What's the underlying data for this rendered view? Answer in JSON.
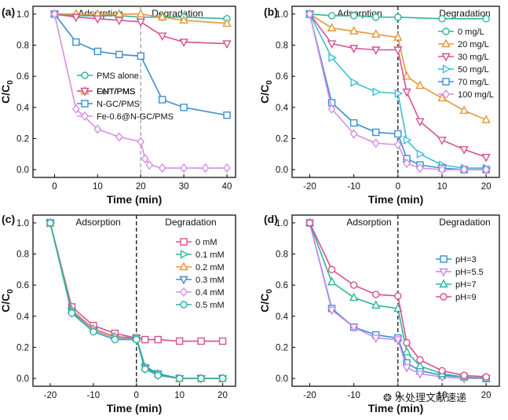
{
  "chart_data": [
    {
      "id": "a",
      "type": "line",
      "panel_label": "(a)",
      "xlabel": "Time (min)",
      "ylabel_main": "C/C",
      "ylabel_sub": "0",
      "xlim": [
        -5,
        42
      ],
      "ylim": [
        -0.05,
        1.05
      ],
      "xticks": [
        0,
        10,
        20,
        30,
        40
      ],
      "yticks": [
        0.0,
        0.2,
        0.4,
        0.6,
        0.8,
        1.0
      ],
      "divider_x": 20,
      "divider_style": "gray-dashed",
      "region_labels": [
        "Adsorption",
        "Degradation"
      ],
      "legend_groups": [
        {
          "position": "mid-left",
          "series_index": [
            0,
            1
          ]
        },
        {
          "position": "bottom-left",
          "series_index": [
            2,
            3,
            4
          ]
        }
      ],
      "series": [
        {
          "name": "PMS alone",
          "color": "#2db59b",
          "marker": "circle",
          "x": [
            0,
            5,
            10,
            15,
            20,
            25,
            30,
            40
          ],
          "y": [
            1.0,
            0.99,
            0.99,
            0.99,
            0.98,
            0.98,
            0.98,
            0.97
          ]
        },
        {
          "name": "Fe²⁺/PMS",
          "color": "#e8953a",
          "marker": "triangle-up",
          "x": [
            0,
            5,
            10,
            15,
            20,
            25,
            30,
            40
          ],
          "y": [
            1.0,
            1.0,
            1.0,
            1.0,
            1.0,
            0.98,
            0.96,
            0.94
          ]
        },
        {
          "name": "CNT/PMS",
          "color": "#d8508f",
          "marker": "triangle-down",
          "x": [
            0,
            5,
            10,
            15,
            20,
            25,
            30,
            40
          ],
          "y": [
            1.0,
            0.98,
            0.97,
            0.96,
            0.95,
            0.86,
            0.82,
            0.81
          ]
        },
        {
          "name": "N-GC/PMS",
          "color": "#3a8fd0",
          "marker": "square",
          "x": [
            0,
            5,
            10,
            15,
            20,
            25,
            30,
            40
          ],
          "y": [
            1.0,
            0.82,
            0.76,
            0.74,
            0.73,
            0.45,
            0.4,
            0.35
          ]
        },
        {
          "name": "Fe-0.6@N-GC/PMS",
          "color": "#d68fe8",
          "marker": "diamond",
          "x": [
            0,
            5,
            10,
            15,
            20,
            21,
            22,
            25,
            30,
            35,
            40
          ],
          "y": [
            1.0,
            0.39,
            0.26,
            0.21,
            0.18,
            0.07,
            0.03,
            0.01,
            0.01,
            0.01,
            0.01
          ]
        }
      ]
    },
    {
      "id": "b",
      "type": "line",
      "panel_label": "(b)",
      "xlabel": "Time (min)",
      "ylabel_main": "C/C",
      "ylabel_sub": "0",
      "xlim": [
        -24,
        23
      ],
      "ylim": [
        -0.05,
        1.05
      ],
      "xticks": [
        -20,
        -10,
        0,
        10,
        20
      ],
      "yticks": [
        0.0,
        0.2,
        0.4,
        0.6,
        0.8,
        1.0
      ],
      "divider_x": 0,
      "divider_style": "black-dashed",
      "region_labels": [
        "Adsorption",
        "Degradation"
      ],
      "legend_groups": [
        {
          "position": "right",
          "series_index": [
            0,
            1,
            2,
            3,
            4,
            5
          ]
        }
      ],
      "series": [
        {
          "name": "0 mg/L",
          "color": "#2db59b",
          "marker": "circle",
          "x": [
            -20,
            -15,
            -10,
            -5,
            0,
            10,
            20
          ],
          "y": [
            1.0,
            0.99,
            0.99,
            0.98,
            0.98,
            0.97,
            0.97
          ]
        },
        {
          "name": "20 mg/L",
          "color": "#e8953a",
          "marker": "triangle-up",
          "x": [
            -20,
            -15,
            -10,
            -5,
            0,
            2,
            5,
            10,
            15,
            20
          ],
          "y": [
            1.0,
            0.91,
            0.89,
            0.87,
            0.85,
            0.6,
            0.54,
            0.46,
            0.38,
            0.32
          ]
        },
        {
          "name": "30 mg/L",
          "color": "#d8508f",
          "marker": "triangle-down",
          "x": [
            -20,
            -15,
            -10,
            -5,
            0,
            2,
            5,
            10,
            15,
            20
          ],
          "y": [
            1.0,
            0.81,
            0.78,
            0.77,
            0.77,
            0.5,
            0.31,
            0.19,
            0.13,
            0.08
          ]
        },
        {
          "name": "50 mg/L",
          "color": "#3ac0d5",
          "marker": "triangle-right",
          "x": [
            -20,
            -15,
            -10,
            -5,
            0,
            2,
            5,
            10,
            15,
            20
          ],
          "y": [
            1.0,
            0.72,
            0.56,
            0.5,
            0.49,
            0.19,
            0.1,
            0.03,
            0.01,
            0.01
          ]
        },
        {
          "name": "70 mg/L",
          "color": "#3a8fd0",
          "marker": "square",
          "x": [
            -20,
            -15,
            -10,
            -5,
            0,
            2,
            5,
            10,
            15,
            20
          ],
          "y": [
            1.0,
            0.43,
            0.3,
            0.24,
            0.23,
            0.07,
            0.03,
            0.01,
            0.0,
            0.0
          ]
        },
        {
          "name": "100 mg/L",
          "color": "#d68fe8",
          "marker": "diamond",
          "x": [
            -20,
            -15,
            -10,
            -5,
            0,
            2,
            5,
            10,
            15,
            20
          ],
          "y": [
            1.0,
            0.39,
            0.23,
            0.17,
            0.16,
            0.04,
            0.01,
            0.0,
            0.0,
            0.0
          ]
        }
      ]
    },
    {
      "id": "c",
      "type": "line",
      "panel_label": "(c)",
      "xlabel": "Time (min)",
      "ylabel_main": "C/C",
      "ylabel_sub": "0",
      "xlim": [
        -24,
        23
      ],
      "ylim": [
        -0.05,
        1.05
      ],
      "xticks": [
        -20,
        -10,
        0,
        10,
        20
      ],
      "yticks": [
        0.0,
        0.2,
        0.4,
        0.6,
        0.8,
        1.0
      ],
      "divider_x": 0,
      "divider_style": "black-dashed",
      "region_labels": [
        "Adsorption",
        "Degradation"
      ],
      "legend_groups": [
        {
          "position": "right",
          "series_index": [
            0,
            1,
            2,
            3,
            4,
            5
          ]
        }
      ],
      "series": [
        {
          "name": "0 mM",
          "color": "#d8508f",
          "marker": "square",
          "x": [
            -20,
            -15,
            -10,
            -5,
            0,
            2,
            5,
            10,
            15,
            20
          ],
          "y": [
            1.0,
            0.46,
            0.34,
            0.29,
            0.26,
            0.25,
            0.25,
            0.24,
            0.24,
            0.24
          ]
        },
        {
          "name": "0.1 mM",
          "color": "#2db59b",
          "marker": "triangle-right",
          "x": [
            -20,
            -15,
            -10,
            -5,
            0,
            2,
            5,
            10,
            15,
            20
          ],
          "y": [
            1.0,
            0.44,
            0.32,
            0.27,
            0.26,
            0.08,
            0.03,
            0.0,
            0.0,
            0.0
          ]
        },
        {
          "name": "0.2 mM",
          "color": "#e8953a",
          "marker": "triangle-up",
          "x": [
            -20,
            -15,
            -10,
            -5,
            0,
            2,
            5,
            10,
            15,
            20
          ],
          "y": [
            1.0,
            0.44,
            0.32,
            0.27,
            0.26,
            0.07,
            0.03,
            0.0,
            0.0,
            0.0
          ]
        },
        {
          "name": "0.3 mM",
          "color": "#3a8fd0",
          "marker": "triangle-down",
          "x": [
            -20,
            -15,
            -10,
            -5,
            0,
            2,
            5,
            10,
            15,
            20
          ],
          "y": [
            1.0,
            0.43,
            0.31,
            0.26,
            0.26,
            0.07,
            0.03,
            0.0,
            0.0,
            0.0
          ]
        },
        {
          "name": "0.4 mM",
          "color": "#d68fe8",
          "marker": "diamond",
          "x": [
            -20,
            -15,
            -10,
            -5,
            0,
            2,
            5,
            10,
            15,
            20
          ],
          "y": [
            1.0,
            0.42,
            0.31,
            0.26,
            0.25,
            0.06,
            0.02,
            0.0,
            0.0,
            0.0
          ]
        },
        {
          "name": "0.5 mM",
          "color": "#2db59b",
          "marker": "circle",
          "x": [
            -20,
            -15,
            -10,
            -5,
            0,
            2,
            5,
            10,
            15,
            20
          ],
          "y": [
            1.0,
            0.42,
            0.3,
            0.25,
            0.25,
            0.06,
            0.02,
            0.0,
            0.0,
            0.0
          ]
        }
      ]
    },
    {
      "id": "d",
      "type": "line",
      "panel_label": "(d)",
      "xlabel": "Time (min)",
      "ylabel_main": "C/C",
      "ylabel_sub": "0",
      "xlim": [
        -24,
        23
      ],
      "ylim": [
        -0.05,
        1.05
      ],
      "xticks": [
        -20,
        -10,
        0,
        10,
        20
      ],
      "yticks": [
        0.0,
        0.2,
        0.4,
        0.6,
        0.8,
        1.0
      ],
      "divider_x": 0,
      "divider_style": "black-dashed",
      "region_labels": [
        "Adsorption",
        "Degradation"
      ],
      "legend_groups": [
        {
          "position": "right",
          "series_index": [
            0,
            1,
            2,
            3
          ]
        }
      ],
      "series": [
        {
          "name": "pH=3",
          "color": "#3a8fd0",
          "marker": "square",
          "x": [
            -20,
            -15,
            -10,
            -5,
            0,
            2,
            5,
            10,
            15,
            20
          ],
          "y": [
            1.0,
            0.45,
            0.33,
            0.28,
            0.26,
            0.1,
            0.05,
            0.02,
            0.01,
            0.0
          ]
        },
        {
          "name": "pH=5.5",
          "color": "#c98ae8",
          "marker": "triangle-down",
          "x": [
            -20,
            -15,
            -10,
            -5,
            0,
            2,
            5,
            10,
            15,
            20
          ],
          "y": [
            1.0,
            0.44,
            0.33,
            0.26,
            0.25,
            0.07,
            0.03,
            0.01,
            0.0,
            0.0
          ]
        },
        {
          "name": "pH=7",
          "color": "#2db59b",
          "marker": "triangle-up",
          "x": [
            -20,
            -15,
            -10,
            -5,
            0,
            2,
            5,
            10,
            15,
            20
          ],
          "y": [
            1.0,
            0.62,
            0.52,
            0.47,
            0.45,
            0.17,
            0.08,
            0.03,
            0.01,
            0.0
          ]
        },
        {
          "name": "pH=9",
          "color": "#d8508f",
          "marker": "circle",
          "x": [
            -20,
            -15,
            -10,
            -5,
            0,
            2,
            5,
            10,
            15,
            20
          ],
          "y": [
            1.0,
            0.7,
            0.6,
            0.54,
            0.53,
            0.23,
            0.12,
            0.05,
            0.02,
            0.01
          ]
        }
      ]
    }
  ],
  "watermark": {
    "text": "水处理文献速递",
    "icon": "wechat-icon"
  }
}
